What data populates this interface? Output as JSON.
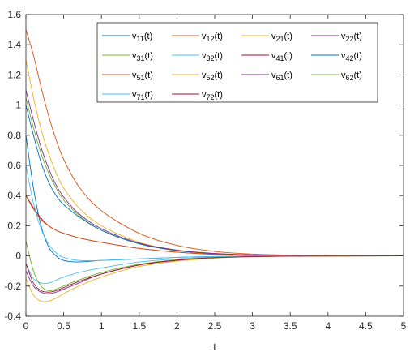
{
  "chart_data": {
    "type": "line",
    "title": "",
    "xlabel": "t",
    "ylabel": "",
    "xlim": [
      0,
      5
    ],
    "ylim": [
      -0.4,
      1.6
    ],
    "xticks": [
      "0",
      "0.5",
      "1",
      "1.5",
      "2",
      "2.5",
      "3",
      "3.5",
      "4",
      "4.5",
      "5"
    ],
    "yticks": [
      "-0.4",
      "-0.2",
      "0",
      "0.2",
      "0.4",
      "0.6",
      "0.8",
      "1",
      "1.2",
      "1.4",
      "1.6"
    ],
    "grid": false,
    "legend_position": "top-right",
    "series": [
      {
        "name": "v11(t)",
        "base": "v",
        "sub": "11",
        "suffix": "(t)",
        "color": "#0072BD",
        "x": [
          0,
          0.1,
          0.2,
          0.3,
          0.4,
          0.5,
          0.7,
          1,
          1.5,
          2,
          2.5,
          3,
          3.5,
          4,
          5
        ],
        "y": [
          0.8,
          0.45,
          0.2,
          0.06,
          0,
          -0.03,
          -0.04,
          -0.03,
          -0.02,
          -0.01,
          -0.004,
          -0.001,
          0,
          0,
          0
        ]
      },
      {
        "name": "v12(t)",
        "base": "v",
        "sub": "12",
        "suffix": "(t)",
        "color": "#D95319",
        "x": [
          0,
          0.1,
          0.2,
          0.3,
          0.4,
          0.5,
          0.7,
          1,
          1.5,
          2,
          2.5,
          3,
          3.5,
          4,
          5
        ],
        "y": [
          1.5,
          1.33,
          1.12,
          0.93,
          0.77,
          0.64,
          0.46,
          0.3,
          0.15,
          0.07,
          0.03,
          0.012,
          0.005,
          0.002,
          0
        ]
      },
      {
        "name": "v21(t)",
        "base": "v",
        "sub": "21",
        "suffix": "(t)",
        "color": "#EDB120",
        "x": [
          0,
          0.1,
          0.2,
          0.3,
          0.4,
          0.5,
          0.7,
          1,
          1.5,
          2,
          2.5,
          3,
          3.5,
          4,
          5
        ],
        "y": [
          1.3,
          1.05,
          0.84,
          0.68,
          0.55,
          0.45,
          0.32,
          0.2,
          0.09,
          0.04,
          0.017,
          0.007,
          0.003,
          0.001,
          0
        ]
      },
      {
        "name": "v22(t)",
        "base": "v",
        "sub": "22",
        "suffix": "(t)",
        "color": "#7E2F8E",
        "x": [
          0,
          0.1,
          0.2,
          0.3,
          0.4,
          0.5,
          0.7,
          1,
          1.5,
          2,
          2.5,
          3,
          3.5,
          4,
          5
        ],
        "y": [
          -0.1,
          -0.2,
          -0.24,
          -0.25,
          -0.24,
          -0.22,
          -0.18,
          -0.12,
          -0.06,
          -0.03,
          -0.012,
          -0.005,
          -0.002,
          0,
          0
        ]
      },
      {
        "name": "v31(t)",
        "base": "v",
        "sub": "31",
        "suffix": "(t)",
        "color": "#77AC30",
        "x": [
          0,
          0.1,
          0.2,
          0.3,
          0.4,
          0.5,
          0.7,
          1,
          1.5,
          2,
          2.5,
          3,
          3.5,
          4,
          5
        ],
        "y": [
          1.05,
          0.85,
          0.68,
          0.55,
          0.45,
          0.37,
          0.27,
          0.17,
          0.08,
          0.035,
          0.015,
          0.006,
          0.002,
          0.001,
          0
        ]
      },
      {
        "name": "v32(t)",
        "base": "v",
        "sub": "32",
        "suffix": "(t)",
        "color": "#4DBEEE",
        "x": [
          0,
          0.1,
          0.2,
          0.3,
          0.4,
          0.5,
          0.7,
          1,
          1.5,
          2,
          2.5,
          3,
          3.5,
          4,
          5
        ],
        "y": [
          -0.05,
          -0.15,
          -0.18,
          -0.18,
          -0.16,
          -0.14,
          -0.11,
          -0.08,
          -0.04,
          -0.02,
          -0.008,
          -0.003,
          -0.001,
          0,
          0
        ]
      },
      {
        "name": "v41(t)",
        "base": "v",
        "sub": "41",
        "suffix": "(t)",
        "color": "#A2142F",
        "x": [
          0,
          0.1,
          0.2,
          0.3,
          0.4,
          0.5,
          0.7,
          1,
          1.5,
          2,
          2.5,
          3,
          3.5,
          4,
          5
        ],
        "y": [
          0.4,
          0.32,
          0.25,
          0.2,
          0.17,
          0.15,
          0.12,
          0.09,
          0.05,
          0.025,
          0.01,
          0.004,
          0.002,
          0.001,
          0
        ]
      },
      {
        "name": "v42(t)",
        "base": "v",
        "sub": "42",
        "suffix": "(t)",
        "color": "#0072BD",
        "x": [
          0,
          0.1,
          0.2,
          0.3,
          0.4,
          0.5,
          0.7,
          1,
          1.5,
          2,
          2.5,
          3,
          3.5,
          4,
          5
        ],
        "y": [
          1.0,
          0.8,
          0.62,
          0.49,
          0.4,
          0.34,
          0.26,
          0.17,
          0.08,
          0.035,
          0.015,
          0.006,
          0.002,
          0.001,
          0
        ]
      },
      {
        "name": "v51(t)",
        "base": "v",
        "sub": "51",
        "suffix": "(t)",
        "color": "#D95319",
        "x": [
          0,
          0.1,
          0.2,
          0.3,
          0.4,
          0.5,
          0.7,
          1,
          1.5,
          2,
          2.5,
          3,
          3.5,
          4,
          5
        ],
        "y": [
          0.4,
          0.31,
          0.24,
          0.2,
          0.17,
          0.15,
          0.12,
          0.09,
          0.05,
          0.025,
          0.011,
          0.004,
          0.002,
          0.001,
          0
        ]
      },
      {
        "name": "v52(t)",
        "base": "v",
        "sub": "52",
        "suffix": "(t)",
        "color": "#EDB120",
        "x": [
          0,
          0.1,
          0.2,
          0.3,
          0.4,
          0.5,
          0.7,
          1,
          1.5,
          2,
          2.5,
          3,
          3.5,
          4,
          5
        ],
        "y": [
          -0.15,
          -0.26,
          -0.3,
          -0.3,
          -0.28,
          -0.25,
          -0.2,
          -0.14,
          -0.07,
          -0.035,
          -0.015,
          -0.006,
          -0.002,
          -0.001,
          0
        ]
      },
      {
        "name": "v61(t)",
        "base": "v",
        "sub": "61",
        "suffix": "(t)",
        "color": "#7E2F8E",
        "x": [
          0,
          0.1,
          0.2,
          0.3,
          0.4,
          0.5,
          0.7,
          1,
          1.5,
          2,
          2.5,
          3,
          3.5,
          4,
          5
        ],
        "y": [
          1.1,
          0.9,
          0.72,
          0.58,
          0.47,
          0.39,
          0.28,
          0.18,
          0.085,
          0.038,
          0.016,
          0.006,
          0.003,
          0.001,
          0
        ]
      },
      {
        "name": "v62(t)",
        "base": "v",
        "sub": "62",
        "suffix": "(t)",
        "color": "#77AC30",
        "x": [
          0,
          0.1,
          0.2,
          0.3,
          0.4,
          0.5,
          0.7,
          1,
          1.5,
          2,
          2.5,
          3,
          3.5,
          4,
          5
        ],
        "y": [
          0.1,
          -0.1,
          -0.2,
          -0.23,
          -0.22,
          -0.2,
          -0.16,
          -0.11,
          -0.055,
          -0.026,
          -0.011,
          -0.004,
          -0.002,
          -0.001,
          0
        ]
      },
      {
        "name": "v71(t)",
        "base": "v",
        "sub": "71",
        "suffix": "(t)",
        "color": "#4DBEEE",
        "x": [
          0,
          0.1,
          0.2,
          0.3,
          0.4,
          0.5,
          0.7,
          1,
          1.5,
          2,
          2.5,
          3,
          3.5,
          4,
          5
        ],
        "y": [
          0.6,
          0.35,
          0.18,
          0.08,
          0.02,
          -0.01,
          -0.03,
          -0.03,
          -0.02,
          -0.01,
          -0.004,
          -0.001,
          0,
          0,
          0
        ]
      },
      {
        "name": "v72(t)",
        "base": "v",
        "sub": "72",
        "suffix": "(t)",
        "color": "#A2142F",
        "x": [
          0,
          0.1,
          0.2,
          0.3,
          0.4,
          0.5,
          0.7,
          1,
          1.5,
          2,
          2.5,
          3,
          3.5,
          4,
          5
        ],
        "y": [
          -0.05,
          -0.18,
          -0.23,
          -0.24,
          -0.23,
          -0.21,
          -0.17,
          -0.12,
          -0.06,
          -0.028,
          -0.012,
          -0.005,
          -0.002,
          -0.001,
          0
        ]
      }
    ]
  }
}
